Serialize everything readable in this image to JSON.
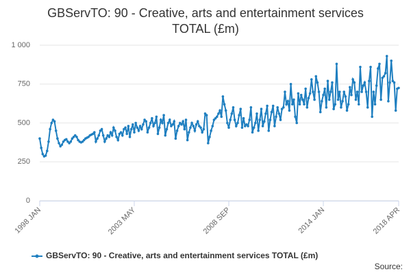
{
  "chart_data": {
    "type": "line",
    "title": "GBServTO: 90 - Creative, arts and entertainment services TOTAL (£m)",
    "source": "Source:",
    "categories": [
      "1998 JAN",
      null,
      null,
      null,
      null,
      null,
      null,
      null,
      null,
      null,
      null,
      null,
      null,
      null,
      null,
      null,
      null,
      null,
      null,
      null,
      null,
      null,
      null,
      null,
      null,
      null,
      null,
      null,
      null,
      null,
      null,
      null,
      null,
      null,
      null,
      null,
      null,
      null,
      null,
      null,
      null,
      null,
      null,
      null,
      null,
      null,
      null,
      null,
      null,
      null,
      null,
      null,
      null,
      null,
      null,
      null,
      null,
      null,
      null,
      null,
      null,
      null,
      null,
      null,
      "2003 MAY",
      null,
      null,
      null,
      null,
      null,
      null,
      null,
      null,
      null,
      null,
      null,
      null,
      null,
      null,
      null,
      null,
      null,
      null,
      null,
      null,
      null,
      null,
      null,
      null,
      null,
      null,
      null,
      null,
      null,
      null,
      null,
      null,
      null,
      null,
      null,
      null,
      null,
      null,
      null,
      null,
      null,
      null,
      null,
      null,
      null,
      null,
      null,
      null,
      null,
      null,
      null,
      null,
      null,
      null,
      null,
      null,
      null,
      null,
      null,
      null,
      null,
      null,
      null,
      "2008 SEP",
      null,
      null,
      null,
      null,
      null,
      null,
      null,
      null,
      null,
      null,
      null,
      null,
      null,
      null,
      null,
      null,
      null,
      null,
      null,
      null,
      null,
      null,
      null,
      null,
      null,
      null,
      null,
      null,
      null,
      null,
      null,
      null,
      null,
      null,
      null,
      null,
      null,
      null,
      null,
      null,
      null,
      null,
      null,
      null,
      null,
      null,
      null,
      null,
      null,
      null,
      null,
      null,
      null,
      null,
      null,
      null,
      null,
      null,
      null,
      null,
      null,
      null,
      null,
      "2014 JAN",
      null,
      null,
      null,
      null,
      null,
      null,
      null,
      null,
      null,
      null,
      null,
      null,
      null,
      null,
      null,
      null,
      null,
      null,
      null,
      null,
      null,
      null,
      null,
      null,
      null,
      null,
      null,
      null,
      null,
      null,
      null,
      null,
      null,
      null,
      null,
      null,
      null,
      null,
      null,
      null,
      null,
      null,
      null,
      null,
      null,
      null,
      null,
      null,
      null,
      null,
      "2018 APR"
    ],
    "series": [
      {
        "name": "GBServTO: 90 - Creative, arts and entertainment services TOTAL (£m)",
        "color": "#1f7fc0",
        "values": [
          400,
          340,
          300,
          285,
          290,
          320,
          380,
          460,
          500,
          520,
          510,
          450,
          400,
          370,
          350,
          360,
          380,
          390,
          395,
          380,
          370,
          380,
          400,
          410,
          420,
          410,
          390,
          380,
          375,
          380,
          390,
          400,
          405,
          410,
          420,
          425,
          430,
          440,
          380,
          400,
          420,
          450,
          460,
          420,
          380,
          400,
          420,
          410,
          440,
          420,
          470,
          450,
          410,
          390,
          430,
          440,
          420,
          460,
          470,
          430,
          480,
          410,
          460,
          490,
          440,
          500,
          470,
          450,
          480,
          460,
          490,
          520,
          510,
          440,
          470,
          500,
          530,
          480,
          500,
          540,
          430,
          470,
          520,
          500,
          550,
          420,
          460,
          500,
          520,
          480,
          490,
          510,
          400,
          450,
          480,
          500,
          490,
          510,
          460,
          520,
          390,
          440,
          470,
          500,
          480,
          450,
          490,
          510,
          480,
          470,
          440,
          460,
          560,
          550,
          370,
          410,
          450,
          480,
          520,
          530,
          540,
          560,
          580,
          540,
          670,
          620,
          580,
          500,
          470,
          520,
          560,
          600,
          520,
          480,
          500,
          550,
          590,
          470,
          530,
          480,
          490,
          480,
          520,
          600,
          440,
          470,
          500,
          560,
          450,
          520,
          590,
          480,
          510,
          560,
          610,
          450,
          520,
          570,
          610,
          480,
          540,
          600,
          560,
          520,
          590,
          600,
          700,
          620,
          640,
          580,
          750,
          620,
          650,
          540,
          500,
          690,
          620,
          680,
          650,
          620,
          720,
          600,
          660,
          690,
          780,
          700,
          650,
          800,
          760,
          700,
          570,
          640,
          680,
          720,
          600,
          770,
          650,
          700,
          760,
          590,
          620,
          880,
          650,
          700,
          600,
          640,
          700,
          670,
          580,
          620,
          730,
          680,
          780,
          760,
          650,
          700,
          620,
          860,
          700,
          740,
          760,
          700,
          600,
          770,
          860,
          540,
          700,
          620,
          740,
          850,
          880,
          650,
          790,
          800,
          820,
          930,
          640,
          760,
          900,
          770,
          760,
          580,
          720,
          725
        ]
      }
    ],
    "ylim": [
      0,
      1000
    ],
    "yticks": [
      0,
      250,
      500,
      750,
      {
        "value": 1000,
        "label": "1 000"
      }
    ],
    "grid": true,
    "legend": "bottom"
  }
}
